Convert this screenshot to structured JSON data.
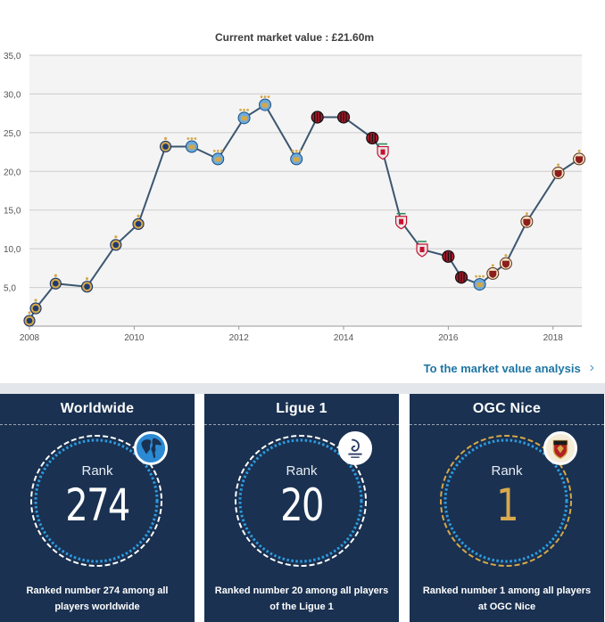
{
  "chart_data": {
    "type": "line",
    "title": "Current market value : £21.60m",
    "xlabel": "",
    "ylabel": "",
    "xlim": [
      2008,
      2018.55
    ],
    "ylim": [
      0,
      35
    ],
    "grid": true,
    "x_ticks": [
      "2008",
      "2010",
      "2012",
      "2014",
      "2016",
      "2018"
    ],
    "y_ticks": [
      "5,0",
      "10,0",
      "15,0",
      "20,0",
      "25,0",
      "30,0",
      "35,0"
    ],
    "x_tick_values": [
      2008,
      2010,
      2012,
      2014,
      2016,
      2018
    ],
    "y_tick_values": [
      5,
      10,
      15,
      20,
      25,
      30,
      35
    ],
    "series": [
      {
        "values": [
          {
            "x": 2008.0,
            "y": 0.7,
            "club": "inter"
          },
          {
            "x": 2008.12,
            "y": 2.3,
            "club": "inter"
          },
          {
            "x": 2008.5,
            "y": 5.5,
            "club": "inter"
          },
          {
            "x": 2009.1,
            "y": 5.1,
            "club": "inter"
          },
          {
            "x": 2009.65,
            "y": 10.5,
            "club": "inter"
          },
          {
            "x": 2010.08,
            "y": 13.2,
            "club": "inter"
          },
          {
            "x": 2010.6,
            "y": 23.2,
            "club": "inter"
          },
          {
            "x": 2011.1,
            "y": 23.2,
            "club": "mancity"
          },
          {
            "x": 2011.6,
            "y": 21.6,
            "club": "mancity"
          },
          {
            "x": 2012.1,
            "y": 26.9,
            "club": "mancity"
          },
          {
            "x": 2012.5,
            "y": 28.6,
            "club": "mancity"
          },
          {
            "x": 2013.1,
            "y": 21.6,
            "club": "mancity"
          },
          {
            "x": 2013.5,
            "y": 27.0,
            "club": "milan"
          },
          {
            "x": 2014.0,
            "y": 27.0,
            "club": "milan"
          },
          {
            "x": 2014.55,
            "y": 24.3,
            "club": "milan"
          },
          {
            "x": 2014.75,
            "y": 22.5,
            "club": "liverpool"
          },
          {
            "x": 2015.1,
            "y": 13.5,
            "club": "liverpool"
          },
          {
            "x": 2015.5,
            "y": 9.9,
            "club": "liverpool"
          },
          {
            "x": 2016.0,
            "y": 9.0,
            "club": "milan"
          },
          {
            "x": 2016.25,
            "y": 6.3,
            "club": "milan"
          },
          {
            "x": 2016.6,
            "y": 5.4,
            "club": "mancity"
          },
          {
            "x": 2016.85,
            "y": 6.8,
            "club": "nice"
          },
          {
            "x": 2017.1,
            "y": 8.1,
            "club": "nice"
          },
          {
            "x": 2017.5,
            "y": 13.5,
            "club": "nice"
          },
          {
            "x": 2018.1,
            "y": 19.8,
            "club": "nice"
          },
          {
            "x": 2018.5,
            "y": 21.6,
            "club": "nice"
          }
        ]
      }
    ],
    "colors": {
      "line": "#3b5670",
      "grid": "#cccccc",
      "plot_bg": "#f4f4f4",
      "inter": "#1f3b70",
      "mancity": "#6cabdd",
      "milan": "#a8182b",
      "liverpool": "#c8102e",
      "nice": "#8d1e1e",
      "gold": "#d4a84a"
    }
  },
  "link": {
    "label": "To the market value analysis",
    "chevron": "›"
  },
  "cards": [
    {
      "title": "Worldwide",
      "rank_label": "Rank",
      "rank": "274",
      "description": "Ranked number 274 among all players worldwide",
      "badge_icon": "globe-icon"
    },
    {
      "title": "Ligue 1",
      "rank_label": "Rank",
      "rank": "20",
      "description": "Ranked number 20 among all players of the Ligue 1",
      "badge_icon": "ligue1-logo-icon"
    },
    {
      "title": "OGC Nice",
      "rank_label": "Rank",
      "rank": "1",
      "description": "Ranked number 1 among all players at OGC Nice",
      "badge_icon": "ogc-nice-crest-icon"
    }
  ],
  "card_colors": {
    "bg": "#1a3151",
    "ring_blue": "#2d9be0",
    "ring_gold": "#d4a84a"
  }
}
